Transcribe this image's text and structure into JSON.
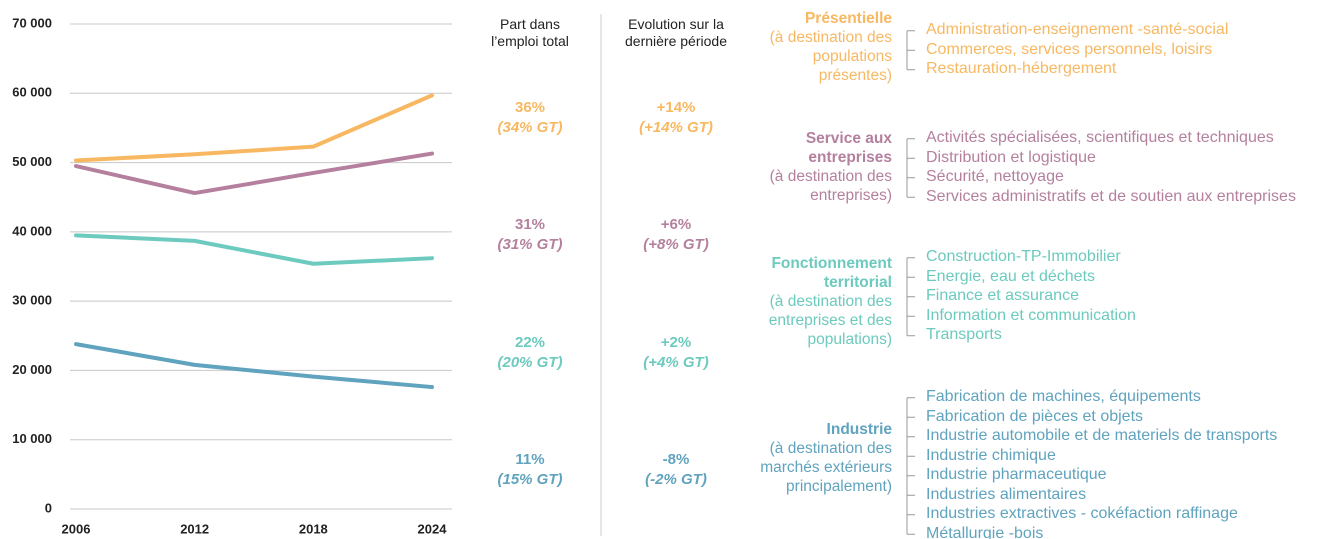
{
  "chart_data": {
    "type": "line",
    "x": [
      2006,
      2012,
      2018,
      2024
    ],
    "xlim": [
      2006,
      2024
    ],
    "xticks": [
      2006,
      2012,
      2018,
      2024
    ],
    "ylim": [
      0,
      70000
    ],
    "yticks": [
      0,
      {
        "value": 10000,
        "label": "10 000"
      },
      {
        "value": 20000,
        "label": "20 000"
      },
      {
        "value": 30000,
        "label": "30 000"
      },
      {
        "value": 40000,
        "label": "40 000"
      },
      {
        "value": 50000,
        "label": "50 000"
      },
      {
        "value": 60000,
        "label": "60 000"
      },
      {
        "value": 70000,
        "label": "70 000"
      }
    ],
    "grid": true,
    "series": [
      {
        "name": "Présentielle",
        "color": "#f8b862",
        "values": [
          50300,
          51200,
          52300,
          59700
        ]
      },
      {
        "name": "Service aux entreprises",
        "color": "#b4809e",
        "values": [
          49500,
          45600,
          48500,
          51300
        ]
      },
      {
        "name": "Fonctionnement territorial",
        "color": "#6ccabe",
        "values": [
          39500,
          38700,
          35400,
          36200
        ]
      },
      {
        "name": "Industrie",
        "color": "#5fa3be",
        "values": [
          23800,
          20800,
          19100,
          17600
        ]
      }
    ]
  },
  "panel": {
    "headers": [
      [
        "Part dans",
        "l’emploi total"
      ],
      [
        "Evolution sur la",
        "dernière période"
      ]
    ],
    "groups": [
      {
        "description": "(à destination des populations présentes)",
        "share": "36%",
        "share_gt": "(34% GT)",
        "evolution": "+14%",
        "evolution_gt": "(+14% GT)",
        "items": [
          "Administration-enseignement -santé-social",
          "Commerces, services personnels, loisirs",
          "Restauration-hébergement"
        ]
      },
      {
        "description": "(à destination des entreprises)",
        "share": "31%",
        "share_gt": "(31% GT)",
        "evolution": "+6%",
        "evolution_gt": "(+8% GT)",
        "items": [
          "Activités spécialisées, scientifiques et techniques",
          "Distribution et logistique",
          "Sécurité, nettoyage",
          "Services administratifs et de soutien aux entreprises"
        ]
      },
      {
        "description": "(à destination des entreprises et des populations)",
        "share": "22%",
        "share_gt": "(20% GT)",
        "evolution": "+2%",
        "evolution_gt": "(+4% GT)",
        "items": [
          "Construction-TP-Immobilier",
          "Energie, eau et déchets",
          "Finance et assurance",
          "Information et communication",
          "Transports"
        ]
      },
      {
        "description": "(à destination des marchés extérieurs principalement)",
        "share": "11%",
        "share_gt": "(15% GT)",
        "evolution": "-8%",
        "evolution_gt": "(-2% GT)",
        "items": [
          "Fabrication de machines, équipements",
          "Fabrication de pièces et objets",
          "Industrie automobile et de materiels de transports",
          "Industrie chimique",
          "Industrie pharmaceutique",
          "Industries alimentaires",
          "Industries extractives - cokéfaction raffinage",
          "Métallurgie -bois"
        ]
      }
    ]
  }
}
